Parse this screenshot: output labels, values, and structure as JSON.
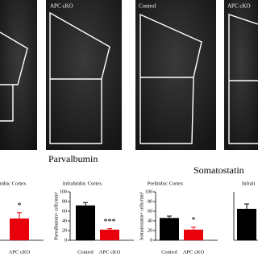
{
  "figure": {
    "panel_labels": [
      "APC cKO",
      "Control",
      "APC cKO"
    ],
    "headings": [
      "Parvalbumin",
      "Somatostatin"
    ]
  },
  "chart_data": [
    {
      "type": "bar",
      "title": "mbic Cortex",
      "categories": [
        "APC cKO"
      ],
      "values": [
        45
      ],
      "errors": [
        12
      ],
      "colors": [
        "#e8000b"
      ],
      "ylim": [
        0,
        100
      ],
      "annotations": [
        {
          "text": "*",
          "category": "APC cKO"
        }
      ]
    },
    {
      "type": "bar",
      "title": "Infralimbic Cortex",
      "ylabel": "Parvalbumin+ cells/mm²",
      "categories": [
        "Control",
        "APC cKO"
      ],
      "values": [
        72,
        22
      ],
      "errors": [
        6,
        2
      ],
      "colors": [
        "#000000",
        "#e8000b"
      ],
      "ylim": [
        0,
        100
      ],
      "yticks": [
        0,
        20,
        40,
        60,
        80,
        100
      ],
      "annotations": [
        {
          "text": "***",
          "category": "APC cKO"
        }
      ]
    },
    {
      "type": "bar",
      "title": "Prelimbic Cortex",
      "ylabel": "Somatostatin+ cells/mm²",
      "categories": [
        "Control",
        "APC cKO"
      ],
      "values": [
        46,
        22
      ],
      "errors": [
        4,
        5
      ],
      "colors": [
        "#000000",
        "#e8000b"
      ],
      "ylim": [
        0,
        100
      ],
      "yticks": [
        0,
        20,
        40,
        60,
        80,
        100
      ],
      "annotations": [
        {
          "text": "*",
          "category": "APC cKO"
        }
      ]
    },
    {
      "type": "bar",
      "title": "Infrali",
      "categories": [
        null
      ],
      "values": [
        65
      ],
      "errors": [
        10
      ],
      "colors": [
        "#000000"
      ],
      "ylim": [
        0,
        100
      ]
    }
  ]
}
